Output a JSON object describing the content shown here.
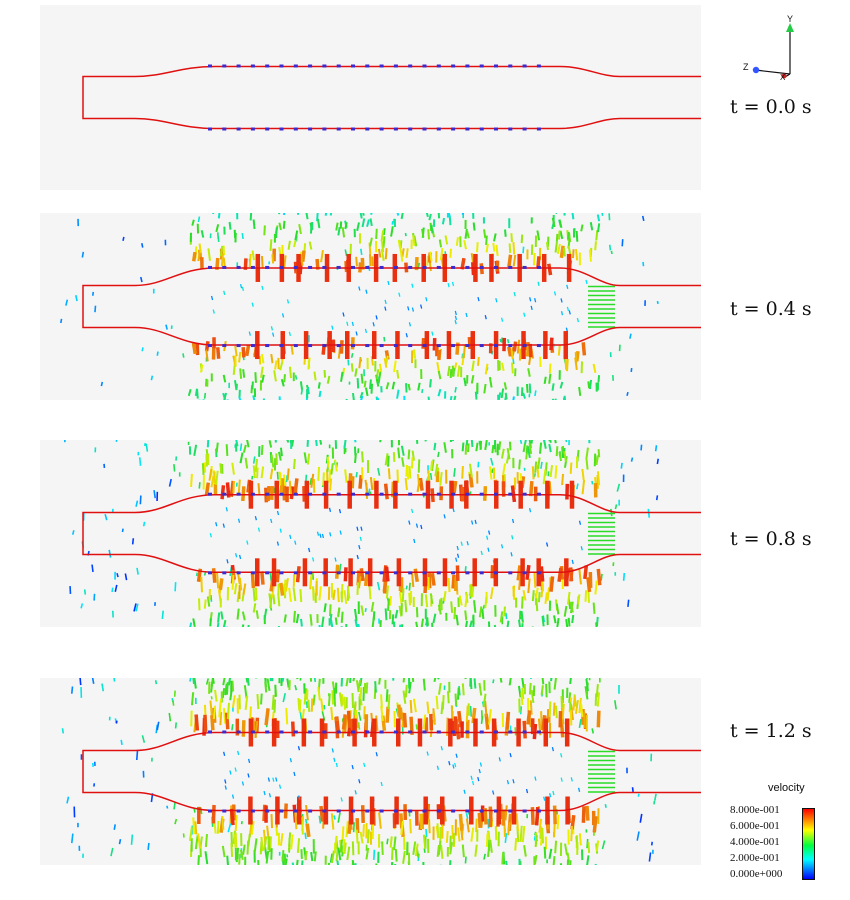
{
  "axes": {
    "y_label": "Y",
    "z_label": "Z",
    "x_label": "X"
  },
  "panels": [
    {
      "time_label": "t = 0.0  s",
      "level": 0.0
    },
    {
      "time_label": "t = 0.4 s",
      "level": 0.55
    },
    {
      "time_label": "t = 0.8 s",
      "level": 0.8
    },
    {
      "time_label": "t = 1.2 s",
      "level": 1.0
    }
  ],
  "legend": {
    "title": "velocity",
    "ticks": [
      "8.000e-001",
      "6.000e-001",
      "4.000e-001",
      "2.000e-001",
      "0.000e+000"
    ],
    "colors": [
      "#0000ff",
      "#00ffff",
      "#00ff40",
      "#ffff00",
      "#ff0000"
    ]
  },
  "colors": {
    "wall": "#e01010",
    "marker": "#3a2ad0",
    "background": "#f5f5f5"
  }
}
